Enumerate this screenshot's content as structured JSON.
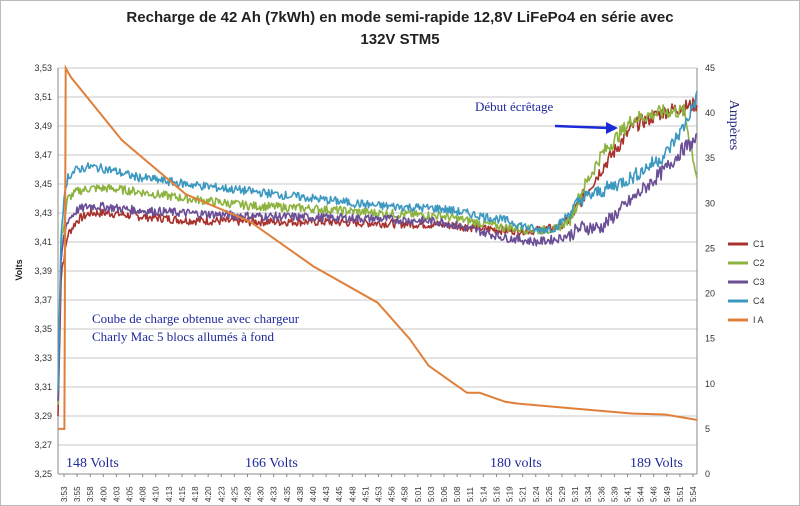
{
  "chart_data": {
    "type": "line",
    "title_line1": "Recharge de 42 Ah (7kWh) en mode semi-rapide 12,8V  LiFePo4 en série avec",
    "title_line2": "132V   STM5",
    "ylabel_left": "Volts",
    "ylabel_right": "Ampères",
    "y_left": {
      "min": 3.25,
      "max": 3.53,
      "ticks": [
        "3,25",
        "3,27",
        "3,29",
        "3,31",
        "3,33",
        "3,35",
        "3,37",
        "3,39",
        "3,41",
        "3,43",
        "3,45",
        "3,47",
        "3,49",
        "3,51",
        "3,53"
      ]
    },
    "y_right": {
      "min": 0,
      "max": 45,
      "ticks": [
        "0",
        "5",
        "10",
        "15",
        "20",
        "25",
        "30",
        "35",
        "40",
        "45"
      ]
    },
    "x_ticks": [
      "3:53",
      "3:55",
      "3:58",
      "4:00",
      "4:03",
      "4:05",
      "4:08",
      "4:10",
      "4:13",
      "4:15",
      "4:18",
      "4:20",
      "4:23",
      "4:25",
      "4:28",
      "4:30",
      "4:33",
      "4:35",
      "4:38",
      "4:40",
      "4:43",
      "4:45",
      "4:48",
      "4:51",
      "4:53",
      "4:56",
      "4:58",
      "5:01",
      "5:03",
      "5:06",
      "5:08",
      "5:11",
      "5:14",
      "5:16",
      "5:19",
      "5:21",
      "5:24",
      "5:26",
      "5:29",
      "5:31",
      "5:34",
      "5:36",
      "5:39",
      "5:41",
      "5:44",
      "5:46",
      "5:49",
      "5:51",
      "5:54"
    ],
    "series": [
      {
        "name": "C1",
        "color": "#a8322e",
        "axis": "left",
        "x": [
          0,
          0.5,
          1.0,
          1.5,
          3,
          5,
          8,
          12,
          20,
          30,
          40,
          50,
          60,
          70,
          75,
          78,
          80,
          82,
          85,
          90,
          95,
          98,
          100
        ],
        "y": [
          3.29,
          3.39,
          3.4,
          3.415,
          3.425,
          3.43,
          3.43,
          3.428,
          3.425,
          3.424,
          3.424,
          3.423,
          3.422,
          3.418,
          3.418,
          3.42,
          3.425,
          3.44,
          3.46,
          3.49,
          3.5,
          3.503,
          3.505
        ]
      },
      {
        "name": "C2",
        "color": "#8cb33f",
        "axis": "left",
        "x": [
          0,
          0.5,
          1.0,
          1.5,
          3,
          5,
          8,
          12,
          20,
          30,
          40,
          50,
          60,
          70,
          75,
          78,
          80,
          82,
          85,
          90,
          95,
          98,
          100
        ],
        "y": [
          3.3,
          3.41,
          3.425,
          3.44,
          3.445,
          3.447,
          3.447,
          3.445,
          3.44,
          3.435,
          3.433,
          3.43,
          3.428,
          3.42,
          3.418,
          3.419,
          3.425,
          3.445,
          3.47,
          3.495,
          3.5,
          3.5,
          3.455
        ]
      },
      {
        "name": "C3",
        "color": "#6b4f96",
        "axis": "left",
        "x": [
          0,
          0.5,
          1.0,
          1.5,
          3,
          5,
          8,
          12,
          20,
          30,
          40,
          50,
          60,
          70,
          75,
          78,
          80,
          82,
          85,
          90,
          95,
          98,
          100
        ],
        "y": [
          3.3,
          3.4,
          3.415,
          3.425,
          3.432,
          3.435,
          3.434,
          3.432,
          3.43,
          3.428,
          3.427,
          3.426,
          3.424,
          3.413,
          3.41,
          3.412,
          3.415,
          3.42,
          3.42,
          3.44,
          3.46,
          3.475,
          3.48
        ]
      },
      {
        "name": "C4",
        "color": "#3d98c0",
        "axis": "left",
        "x": [
          0,
          0.5,
          1.0,
          1.5,
          3,
          5,
          8,
          12,
          20,
          30,
          40,
          50,
          60,
          70,
          75,
          78,
          80,
          82,
          85,
          90,
          95,
          98,
          100
        ],
        "y": [
          3.31,
          3.42,
          3.44,
          3.455,
          3.46,
          3.462,
          3.46,
          3.455,
          3.45,
          3.445,
          3.44,
          3.435,
          3.433,
          3.425,
          3.418,
          3.42,
          3.43,
          3.44,
          3.445,
          3.455,
          3.47,
          3.49,
          3.51
        ]
      },
      {
        "name": "I A",
        "color": "#e07f3a",
        "axis": "right",
        "x": [
          0,
          1,
          1.2,
          2,
          10,
          20,
          30,
          40,
          50,
          55,
          58,
          62,
          64,
          66,
          68,
          70,
          72,
          80,
          90,
          95,
          100
        ],
        "y": [
          5,
          5,
          45,
          44,
          37,
          31,
          28,
          23,
          19,
          15,
          12,
          10,
          9,
          9,
          8.5,
          8,
          7.8,
          7.3,
          6.7,
          6.6,
          6
        ]
      }
    ],
    "annotations": {
      "arrow_label": "Début écrêtage",
      "note_line1": "Coube de charge obtenue avec chargeur",
      "note_line2": "Charly Mac 5 blocs allumés à fond",
      "volts_148": "148 Volts",
      "volts_166": "166 Volts",
      "volts_180": "180 volts",
      "volts_189": "189 Volts"
    },
    "legend": "right",
    "grid": "horizontal"
  }
}
